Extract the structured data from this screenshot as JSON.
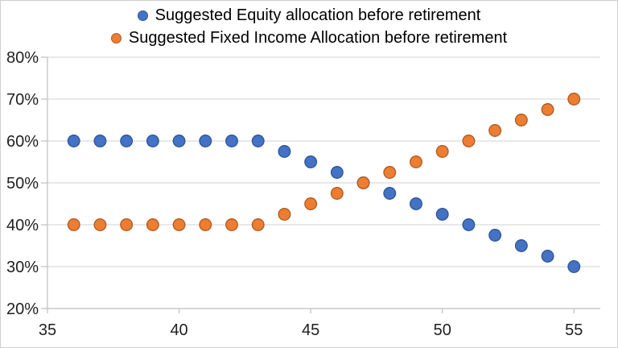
{
  "chart_data": {
    "type": "scatter",
    "title": "",
    "xlabel": "",
    "ylabel": "",
    "x": [
      36,
      37,
      38,
      39,
      40,
      41,
      42,
      43,
      44,
      45,
      46,
      47,
      48,
      49,
      50,
      51,
      52,
      53,
      54,
      55
    ],
    "series": [
      {
        "name": "Suggested Equity allocation before retirement",
        "color": "#4472C4",
        "border_color": "#2E5597",
        "values": [
          60,
          60,
          60,
          60,
          60,
          60,
          60,
          60,
          57.5,
          55,
          52.5,
          50,
          47.5,
          45,
          42.5,
          40,
          37.5,
          35,
          32.5,
          30
        ]
      },
      {
        "name": "Suggested Fixed Income Allocation before retirement",
        "color": "#ED7D31",
        "border_color": "#AE5A21",
        "values": [
          40,
          40,
          40,
          40,
          40,
          40,
          40,
          40,
          42.5,
          45,
          47.5,
          50,
          52.5,
          55,
          57.5,
          60,
          62.5,
          65,
          67.5,
          70
        ]
      }
    ],
    "xlim": [
      35,
      56
    ],
    "ylim": [
      20,
      80
    ],
    "x_ticks": [
      35,
      40,
      45,
      50,
      55
    ],
    "y_tick_values": [
      80,
      70,
      60,
      50,
      40,
      30,
      20
    ],
    "y_ticks": [
      "80%",
      "70%",
      "60%",
      "50%",
      "40%",
      "30%",
      "20%"
    ],
    "grid": "horizontal",
    "legend_position": "top-center",
    "colors": {
      "gridline": "#D9D9D9",
      "axis": "#BFBFBF",
      "label": "#1f1f1f",
      "background": "#FFFFFF",
      "border": "#CFCFCF"
    }
  }
}
